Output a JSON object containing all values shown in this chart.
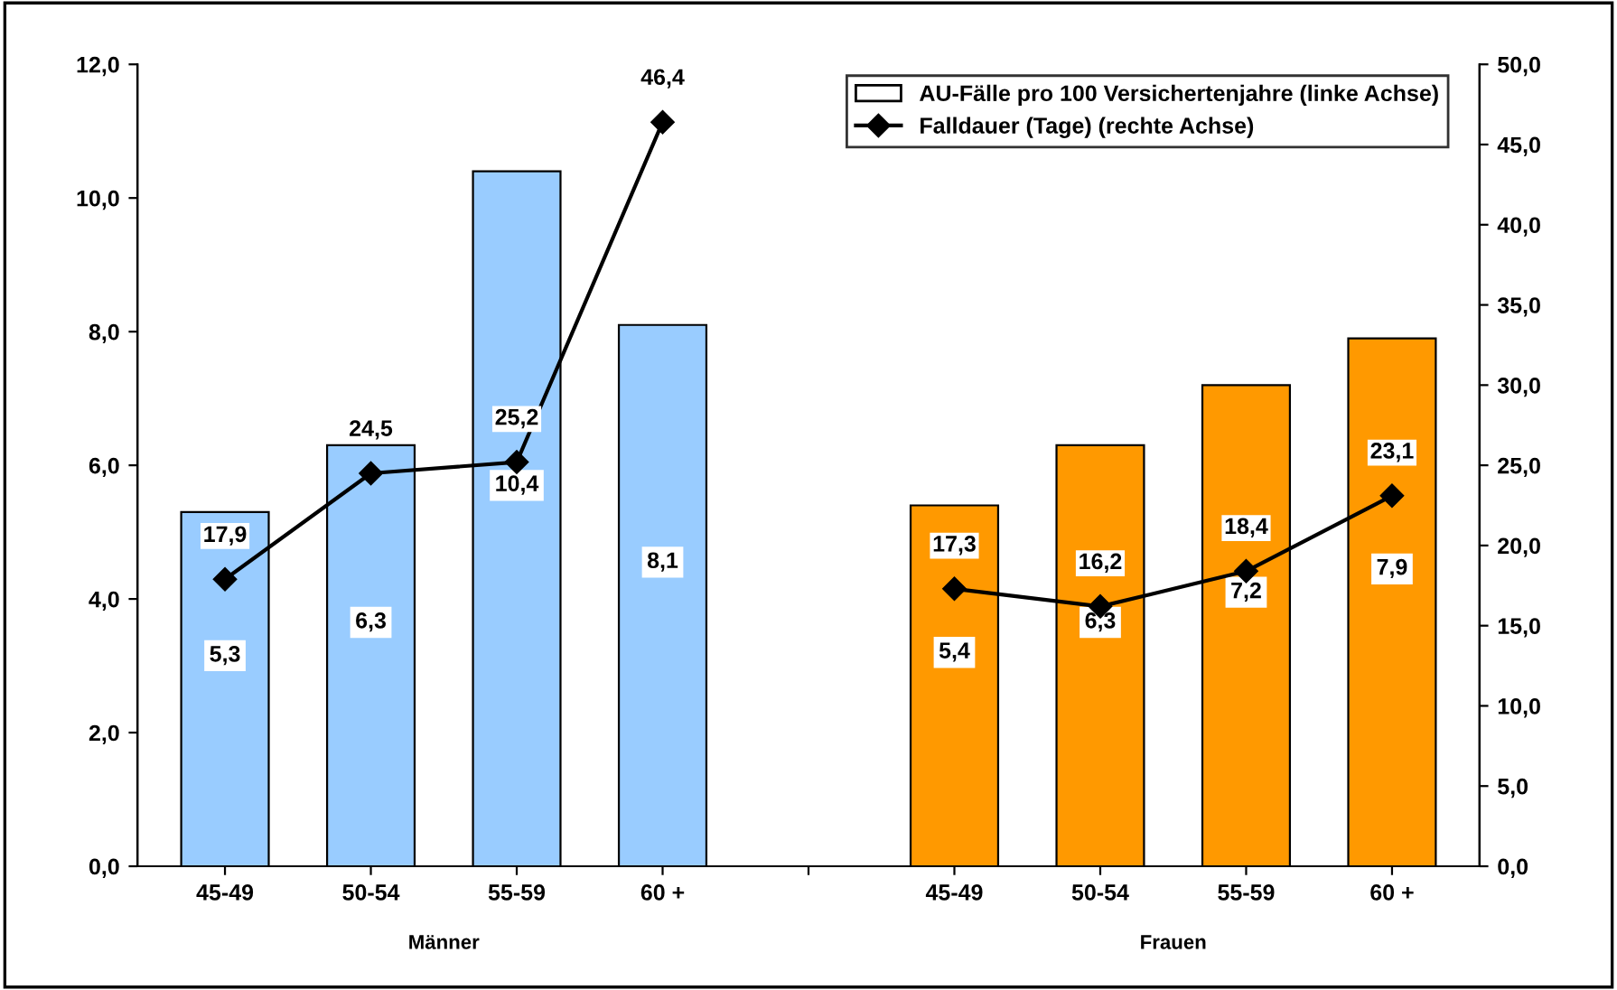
{
  "chart_data": {
    "type": "bar",
    "categories": [
      "45-49",
      "50-54",
      "55-59",
      "60 +",
      null,
      "45-49",
      "50-54",
      "55-59",
      "60 +"
    ],
    "series": [
      {
        "name": "AU-Fälle pro 100 Versichertenjahre (linke Achse)",
        "colors": [
          "#99ccff",
          "#99ccff",
          "#99ccff",
          "#99ccff",
          null,
          "#ff9900",
          "#ff9900",
          "#ff9900",
          "#ff9900"
        ],
        "values": [
          5.3,
          6.3,
          10.4,
          8.1,
          null,
          5.4,
          6.3,
          7.2,
          7.9
        ],
        "value_labels": [
          "5,3",
          "6,3",
          "10,4",
          "8,1",
          null,
          "5,4",
          "6,3",
          "7,2",
          "7,9"
        ]
      },
      {
        "type": "line",
        "name": "Falldauer (Tage) (rechte Achse)",
        "color": "#000000",
        "axis": "y2",
        "marker": "diamond",
        "line_style": "solid",
        "values": [
          17.9,
          24.5,
          25.2,
          46.4,
          null,
          17.3,
          16.2,
          18.4,
          23.1
        ],
        "value_labels": [
          "17,9",
          "24,5",
          "25,2",
          "46,4",
          null,
          "17,3",
          "16,2",
          "18,4",
          "23,1"
        ]
      }
    ],
    "ylim": [
      0,
      12
    ],
    "yticks": [
      {
        "value": 0,
        "label": "0,0"
      },
      {
        "value": 2,
        "label": "2,0"
      },
      {
        "value": 4,
        "label": "4,0"
      },
      {
        "value": 6,
        "label": "6,0"
      },
      {
        "value": 8,
        "label": "8,0"
      },
      {
        "value": 10,
        "label": "10,0"
      },
      {
        "value": 12,
        "label": "12,0"
      }
    ],
    "y2lim": [
      0,
      50
    ],
    "y2ticks": [
      {
        "value": 0,
        "label": "0,0"
      },
      {
        "value": 5,
        "label": "5,0"
      },
      {
        "value": 10,
        "label": "10,0"
      },
      {
        "value": 15,
        "label": "15,0"
      },
      {
        "value": 20,
        "label": "20,0"
      },
      {
        "value": 25,
        "label": "25,0"
      },
      {
        "value": 30,
        "label": "30,0"
      },
      {
        "value": 35,
        "label": "35,0"
      },
      {
        "value": 40,
        "label": "40,0"
      },
      {
        "value": 45,
        "label": "45,0"
      },
      {
        "value": 50,
        "label": "50,0"
      }
    ],
    "annotations": [
      "Männer",
      "Frauen"
    ],
    "legend": "top right",
    "grid": false
  }
}
